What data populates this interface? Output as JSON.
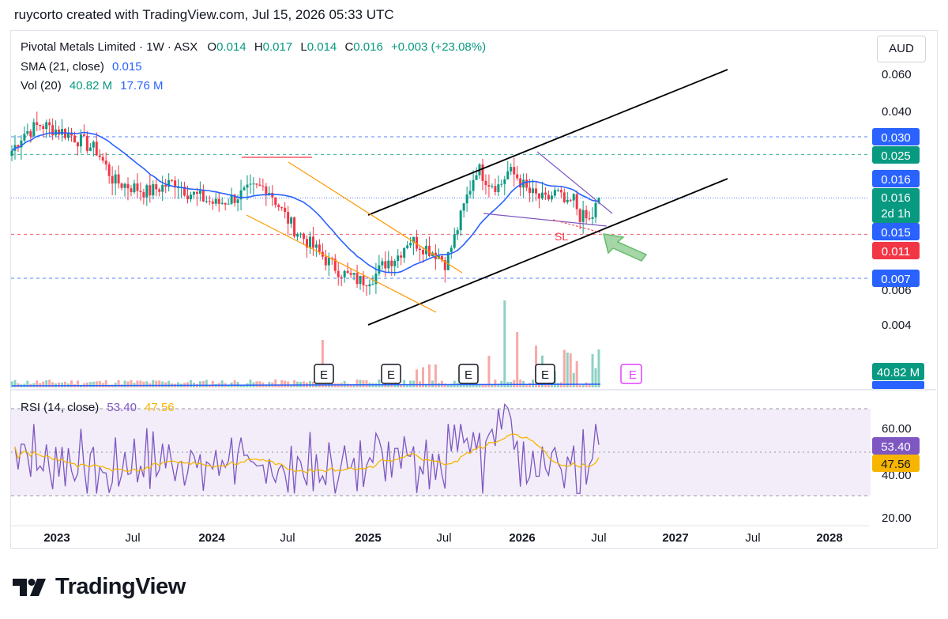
{
  "header": {
    "attribution": "ruycorto created with TradingView.com, Jul 15, 2026 05:33 UTC"
  },
  "legend": {
    "symbol": "Pivotal Metals Limited · 1W · ASX",
    "o_label": "O",
    "o": "0.014",
    "h_label": "H",
    "h": "0.017",
    "l_label": "L",
    "l": "0.014",
    "c_label": "C",
    "c": "0.016",
    "change": "+0.003 (+23.08%)",
    "sma_label": "SMA (21, close)",
    "sma_value": "0.015",
    "vol_label": "Vol (20)",
    "vol_value1": "40.82 M",
    "vol_value2": "17.76 M"
  },
  "rsi_legend": {
    "label": "RSI (14, close)",
    "value1": "53.40",
    "value2": "47.56"
  },
  "currency": "AUD",
  "brand": "TradingView",
  "colors": {
    "up": "#089981",
    "down": "#f23645",
    "sma": "#2962ff",
    "rsi": "#7e57c2",
    "rsi_ma": "#f7b500",
    "channel": "#000000",
    "falling_channel": "#ff9800",
    "arrow": "#66bb6a"
  },
  "chart_data": {
    "type": "candlestick",
    "price_scale": "log",
    "y_axis_ticks": [
      "0.060",
      "0.040",
      "0.004"
    ],
    "y_axis_partial_tick": "0.006",
    "price_labels": [
      {
        "value": "0.030",
        "color": "#2962ff"
      },
      {
        "value": "0.025",
        "color": "#089981"
      },
      {
        "value": "0.016",
        "color": "#2962ff"
      },
      {
        "value": "0.016",
        "sub": "2d 1h",
        "color": "#089981"
      },
      {
        "value": "0.015",
        "color": "#2962ff"
      },
      {
        "value": "0.011",
        "color": "#f23645"
      },
      {
        "value": "0.007",
        "color": "#2962ff"
      }
    ],
    "horizontal_levels": [
      0.03,
      0.025,
      0.016,
      0.011,
      0.007
    ],
    "x_axis_ticks": [
      "2023",
      "Jul",
      "2024",
      "Jul",
      "2025",
      "Jul",
      "2026",
      "Jul",
      "2027",
      "Jul",
      "2028"
    ],
    "annotation": "SL",
    "earnings_markers": [
      "E",
      "E",
      "E",
      "E",
      "E"
    ],
    "volume_labels": [
      "40.82 M",
      "17.76 M"
    ],
    "rsi_axis_ticks": [
      "60.00",
      "40.00",
      "20.00"
    ],
    "rsi_labels": [
      {
        "value": "53.40",
        "color": "#7e57c2"
      },
      {
        "value": "47.56",
        "color": "#f7b500"
      }
    ],
    "rsi_band": [
      30,
      70
    ]
  }
}
